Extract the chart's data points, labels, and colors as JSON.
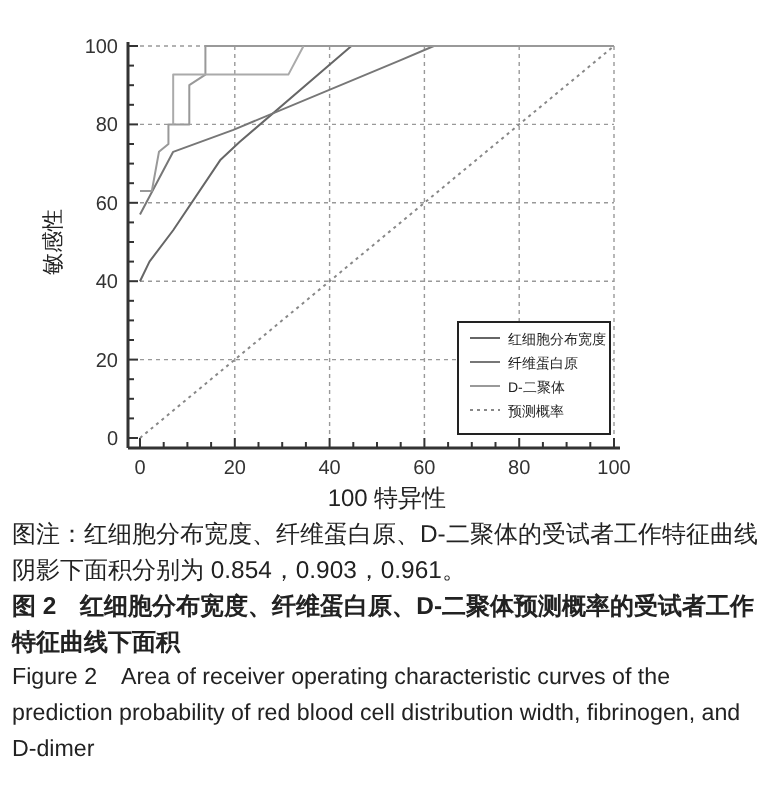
{
  "chart_data": {
    "type": "line",
    "xlabel": "100 特异性",
    "ylabel": "敏感性",
    "xlim": [
      0,
      100
    ],
    "ylim": [
      0,
      100
    ],
    "xticks": [
      0,
      {
        "value": 5,
        "label": null
      },
      {
        "value": 10,
        "label": null
      },
      {
        "value": 15,
        "label": null
      },
      20,
      {
        "value": 25,
        "label": null
      },
      {
        "value": 30,
        "label": null
      },
      {
        "value": 35,
        "label": null
      },
      40,
      {
        "value": 45,
        "label": null
      },
      {
        "value": 50,
        "label": null
      },
      {
        "value": 55,
        "label": null
      },
      60,
      {
        "value": 65,
        "label": null
      },
      {
        "value": 70,
        "label": null
      },
      {
        "value": 75,
        "label": null
      },
      80,
      {
        "value": 85,
        "label": null
      },
      {
        "value": 90,
        "label": null
      },
      {
        "value": 95,
        "label": null
      },
      100
    ],
    "yticks": [
      0,
      {
        "value": 5,
        "label": null
      },
      {
        "value": 10,
        "label": null
      },
      {
        "value": 15,
        "label": null
      },
      20,
      {
        "value": 25,
        "label": null
      },
      {
        "value": 30,
        "label": null
      },
      {
        "value": 35,
        "label": null
      },
      40,
      {
        "value": 45,
        "label": null
      },
      {
        "value": 50,
        "label": null
      },
      {
        "value": 55,
        "label": null
      },
      60,
      {
        "value": 65,
        "label": null
      },
      {
        "value": 70,
        "label": null
      },
      {
        "value": 75,
        "label": null
      },
      80,
      {
        "value": 85,
        "label": null
      },
      {
        "value": 90,
        "label": null
      },
      {
        "value": 95,
        "label": null
      },
      100
    ],
    "grid": true,
    "legend": "bottom right",
    "series": [
      {
        "name": "红细胞分布宽度",
        "color": "#666666",
        "x": [
          0,
          2,
          7,
          17,
          21,
          44.6,
          100
        ],
        "values": [
          40,
          45,
          53,
          71,
          75.5,
          100,
          100
        ]
      },
      {
        "name": "纤维蛋白原",
        "color": "#777777",
        "x": [
          0,
          7,
          19.7,
          55,
          62,
          100
        ],
        "values": [
          57,
          73,
          78.6,
          96.4,
          100,
          100
        ]
      },
      {
        "name": "D-二聚体",
        "color": "#999999",
        "x": [
          0,
          2.5,
          4,
          6,
          6,
          10.4,
          10.4,
          13.8,
          13.8,
          100
        ],
        "values": [
          63,
          63,
          73,
          75,
          80,
          80,
          90,
          92.7,
          100,
          100
        ]
      },
      {
        "color": "#aaaaaa",
        "x": [
          7,
          7,
          31.3,
          34.5
        ],
        "values": [
          80,
          92.7,
          92.7,
          100
        ]
      },
      {
        "name": "预测概率",
        "color": "#888888",
        "line_style": "dotted",
        "x": [
          0,
          100
        ],
        "values": [
          0,
          100
        ]
      }
    ],
    "annotations": [
      "图注：红细胞分布宽度、纤维蛋白原、D-二聚体的受试者工作特征曲线阴影下面积分别为 0.854，0.903，0.961。",
      "图 2　红细胞分布宽度、纤维蛋白原、D-二聚体预测概率的受试者工作特征曲线下面积",
      "Figure 2　Area of receiver operating characteristic curves of the prediction probability of red blood cell distribution width, fibrinogen, and D-dimer"
    ]
  }
}
